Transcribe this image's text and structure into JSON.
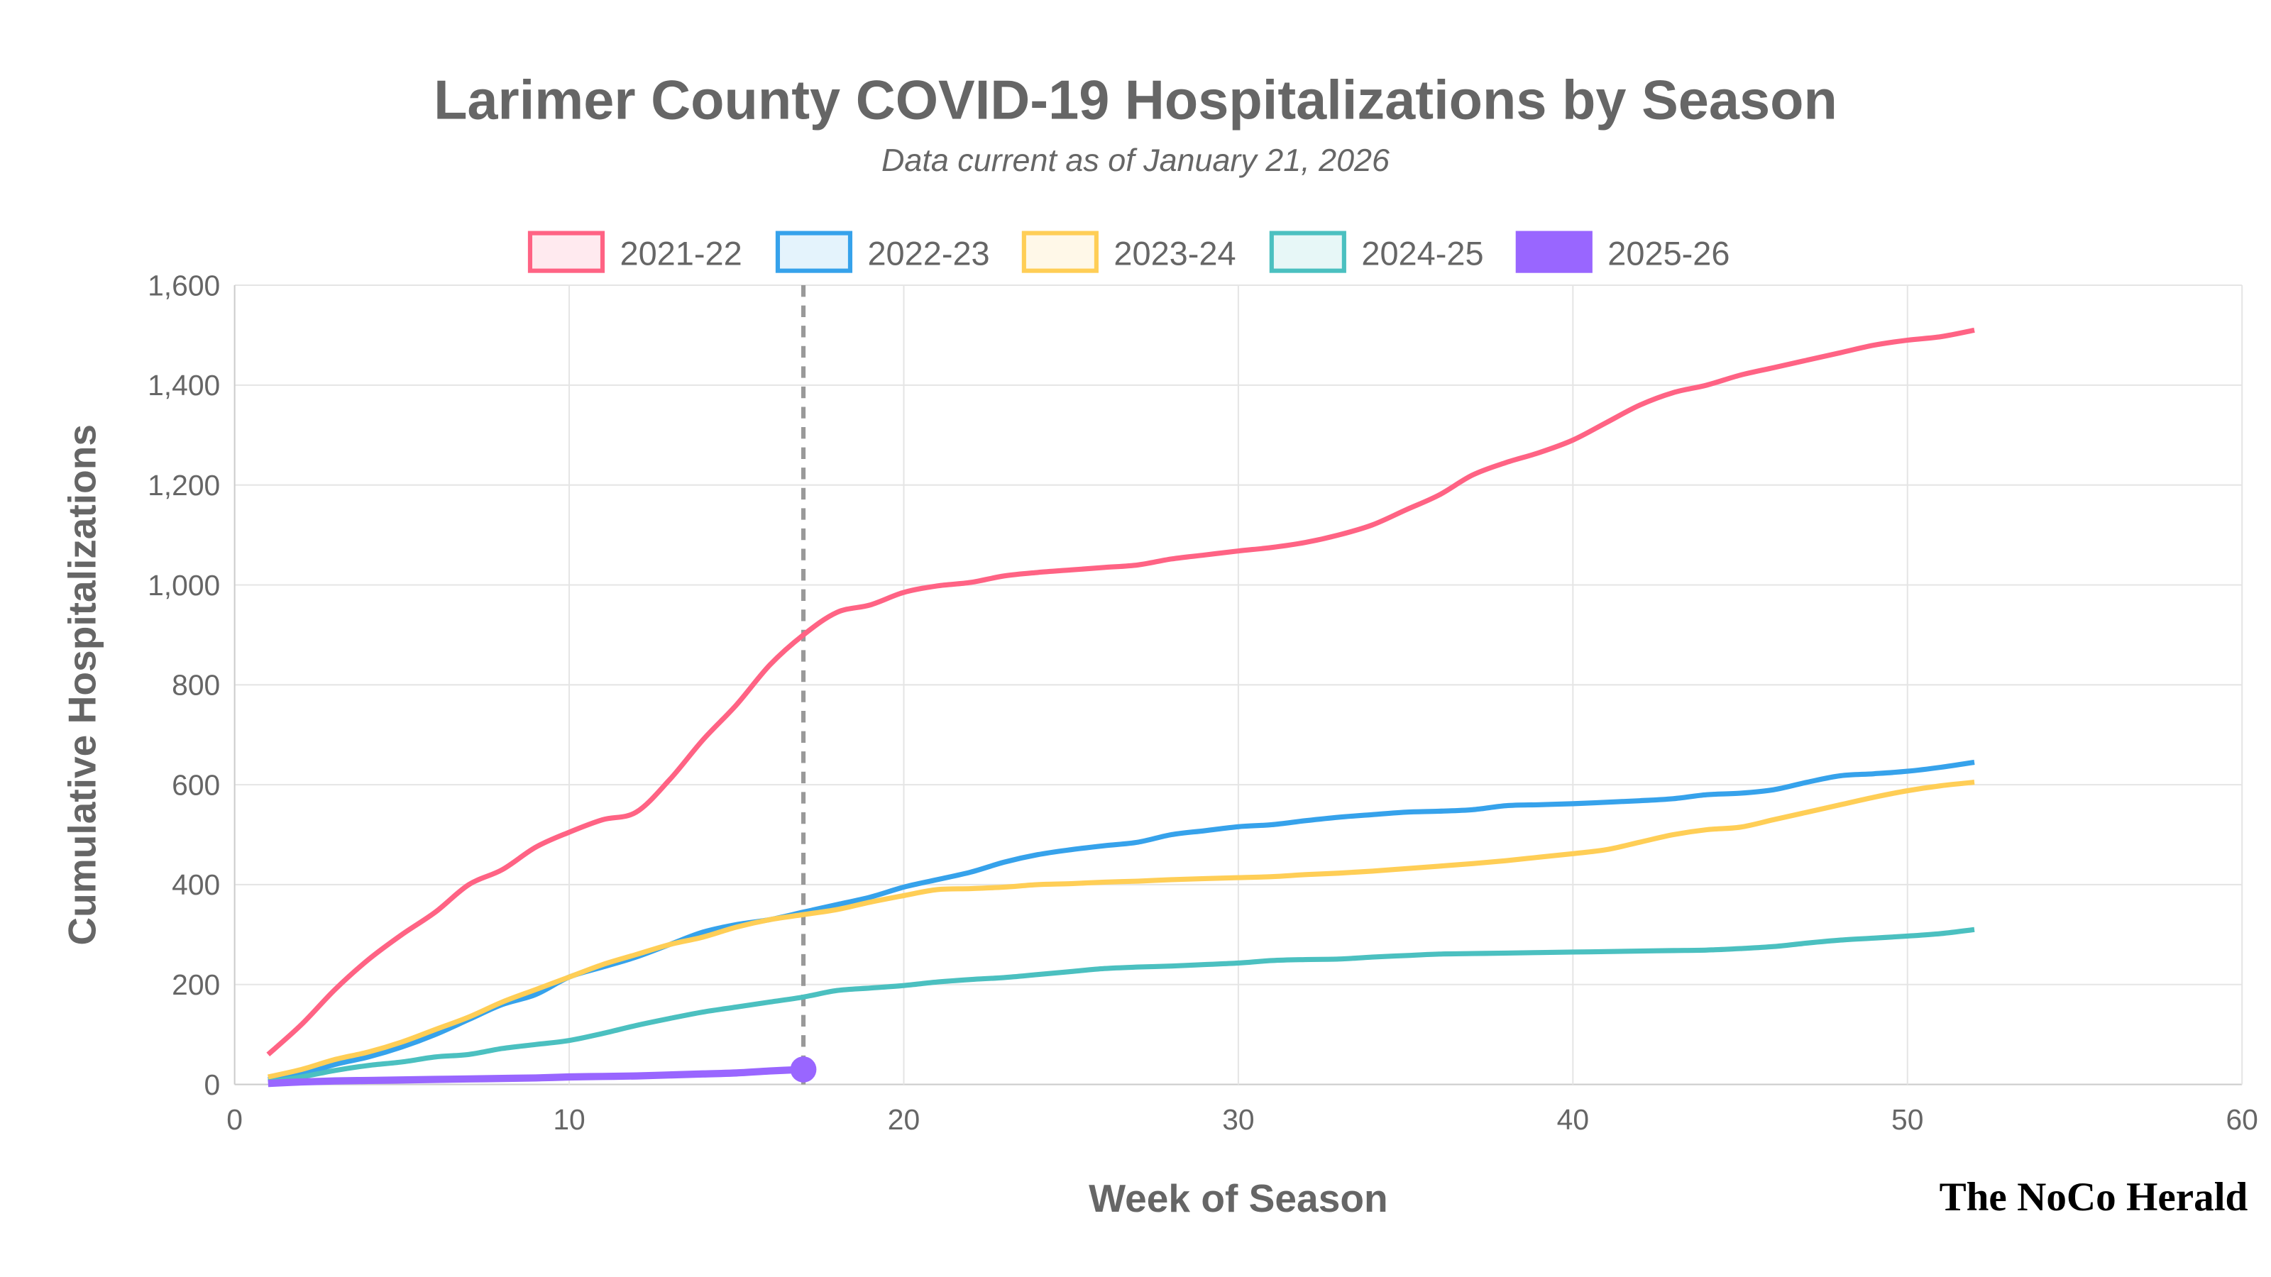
{
  "chart_data": {
    "type": "line",
    "title": "Larimer County COVID-19 Hospitalizations by Season",
    "subtitle": "Data current as of January 21, 2026",
    "xlabel": "Week of Season",
    "ylabel": "Cumulative Hospitalizations",
    "xlim": [
      0,
      60
    ],
    "ylim": [
      0,
      1600
    ],
    "xticks": [
      0,
      10,
      20,
      30,
      40,
      50,
      60
    ],
    "yticks": [
      0,
      200,
      400,
      600,
      800,
      1000,
      1200,
      1400,
      1600
    ],
    "ytick_labels": [
      "0",
      "200",
      "400",
      "600",
      "800",
      "1,000",
      "1,200",
      "1,400",
      "1,600"
    ],
    "grid": true,
    "legend_position": "top",
    "current_week_marker": 17,
    "series": [
      {
        "name": "2021-22",
        "color": "#ff6384",
        "values": [
          60,
          120,
          190,
          250,
          300,
          345,
          400,
          430,
          475,
          505,
          530,
          545,
          610,
          690,
          760,
          840,
          900,
          945,
          960,
          985,
          998,
          1005,
          1018,
          1025,
          1030,
          1035,
          1040,
          1052,
          1060,
          1068,
          1075,
          1085,
          1100,
          1120,
          1150,
          1180,
          1220,
          1245,
          1265,
          1290,
          1325,
          1360,
          1385,
          1400,
          1420,
          1435,
          1450,
          1465,
          1480,
          1490,
          1497,
          1510
        ]
      },
      {
        "name": "2022-23",
        "color": "#36a2eb",
        "values": [
          10,
          20,
          40,
          55,
          75,
          100,
          130,
          160,
          180,
          215,
          235,
          255,
          280,
          305,
          320,
          330,
          345,
          360,
          375,
          395,
          410,
          425,
          445,
          460,
          470,
          478,
          485,
          500,
          508,
          516,
          520,
          528,
          535,
          540,
          545,
          547,
          550,
          558,
          560,
          562,
          565,
          568,
          572,
          580,
          583,
          590,
          605,
          618,
          622,
          627,
          635,
          645
        ]
      },
      {
        "name": "2023-24",
        "color": "#ffce56",
        "values": [
          15,
          30,
          50,
          65,
          85,
          110,
          135,
          165,
          190,
          215,
          240,
          260,
          280,
          295,
          315,
          330,
          340,
          350,
          365,
          378,
          390,
          392,
          395,
          400,
          402,
          405,
          407,
          410,
          412,
          414,
          416,
          420,
          423,
          427,
          432,
          437,
          442,
          448,
          455,
          462,
          470,
          485,
          500,
          510,
          515,
          530,
          545,
          560,
          575,
          588,
          598,
          605
        ]
      },
      {
        "name": "2024-25",
        "color": "#4bc0c0",
        "values": [
          5,
          15,
          28,
          38,
          45,
          55,
          60,
          72,
          80,
          88,
          102,
          118,
          132,
          145,
          155,
          165,
          175,
          188,
          193,
          198,
          205,
          210,
          214,
          220,
          226,
          232,
          235,
          237,
          240,
          243,
          248,
          250,
          251,
          255,
          258,
          261,
          262,
          263,
          264,
          265,
          266,
          267,
          268,
          269,
          272,
          276,
          283,
          289,
          293,
          297,
          302,
          310
        ]
      },
      {
        "name": "2025-26",
        "color": "#9966ff",
        "values": [
          2,
          5,
          7,
          8,
          9,
          10,
          11,
          12,
          13,
          15,
          16,
          17,
          19,
          21,
          23,
          27,
          30
        ]
      }
    ]
  },
  "branding": {
    "logo_text": "The NoCo Herald"
  }
}
